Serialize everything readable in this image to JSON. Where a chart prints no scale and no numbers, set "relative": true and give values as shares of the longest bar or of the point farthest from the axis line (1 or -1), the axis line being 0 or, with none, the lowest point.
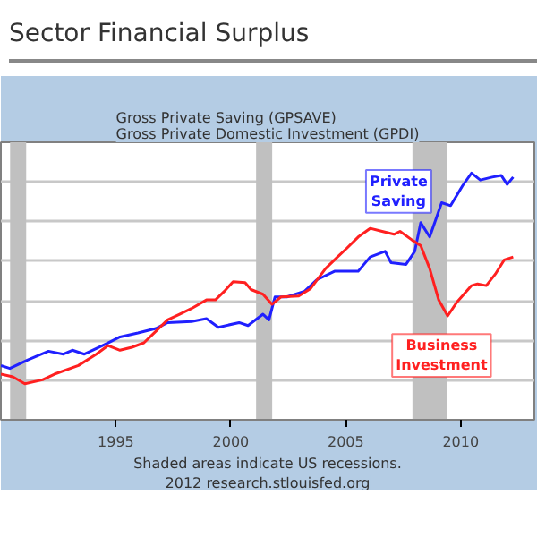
{
  "chart_data": {
    "type": "line",
    "title": "Sector Financial Surplus",
    "subtitle": "Gross Private Saving (GPSAVE)\nGross Private Domestic Investment (GPDI)",
    "relative": true,
    "xlim": [
      1990,
      2013.2
    ],
    "xticks": [
      1995,
      2000,
      2005,
      2010
    ],
    "grid": "y",
    "legend": false,
    "bands": [
      {
        "axis": "x",
        "from": 1990.4,
        "to": 1991.1,
        "color": "#c0c0c0"
      },
      {
        "axis": "x",
        "from": 2001.1,
        "to": 2001.8,
        "color": "#c0c0c0"
      },
      {
        "axis": "x",
        "from": 2007.9,
        "to": 2009.4,
        "color": "#c0c0c0"
      }
    ],
    "annotations": [
      "Shaded areas indicate US recessions.",
      "2012 research.stlouisfed.org"
    ],
    "series": [
      {
        "name": "Private Saving",
        "color": "#2020ff",
        "x": [
          1990.0,
          1990.39,
          1991.17,
          1992.07,
          1992.72,
          1993.11,
          1993.63,
          1994.15,
          1994.66,
          1995.18,
          1995.96,
          1996.74,
          1997.25,
          1998.29,
          1998.94,
          1999.46,
          2000.36,
          2000.75,
          2001.4,
          2001.66,
          2001.92,
          2002.44,
          2003.21,
          2003.73,
          2004.51,
          2005.54,
          2006.06,
          2006.71,
          2006.97,
          2007.62,
          2008.0,
          2008.26,
          2008.65,
          2009.17,
          2009.56,
          2010.08,
          2010.47,
          2010.85,
          2011.37,
          2011.76,
          2012.02,
          2012.28
        ],
        "values": [
          0.22,
          0.208,
          0.243,
          0.278,
          0.266,
          0.282,
          0.266,
          0.289,
          0.312,
          0.336,
          0.352,
          0.37,
          0.394,
          0.398,
          0.41,
          0.375,
          0.394,
          0.382,
          0.428,
          0.405,
          0.498,
          0.498,
          0.521,
          0.567,
          0.602,
          0.602,
          0.66,
          0.683,
          0.637,
          0.63,
          0.683,
          0.799,
          0.741,
          0.88,
          0.868,
          0.949,
          1.0,
          0.972,
          0.984,
          0.991,
          0.954,
          0.984
        ]
      },
      {
        "name": "Business Investment",
        "color": "#ff2020",
        "x": [
          1990.0,
          1990.52,
          1991.04,
          1991.81,
          1992.33,
          1993.37,
          1994.15,
          1994.66,
          1995.18,
          1995.7,
          1996.22,
          1996.74,
          1997.25,
          1997.77,
          1998.29,
          1998.94,
          1999.33,
          1999.72,
          2000.1,
          2000.62,
          2000.88,
          2001.4,
          2001.79,
          2002.18,
          2002.95,
          2003.47,
          2004.12,
          2004.64,
          2005.03,
          2005.54,
          2006.06,
          2006.58,
          2007.1,
          2007.36,
          2007.88,
          2008.26,
          2008.65,
          2009.04,
          2009.43,
          2009.82,
          2010.47,
          2010.73,
          2011.11,
          2011.5,
          2011.89,
          2012.28
        ],
        "values": [
          0.185,
          0.174,
          0.146,
          0.162,
          0.185,
          0.22,
          0.266,
          0.301,
          0.282,
          0.294,
          0.312,
          0.359,
          0.405,
          0.428,
          0.451,
          0.486,
          0.486,
          0.521,
          0.56,
          0.556,
          0.528,
          0.509,
          0.468,
          0.498,
          0.502,
          0.532,
          0.613,
          0.66,
          0.694,
          0.741,
          0.776,
          0.764,
          0.752,
          0.764,
          0.729,
          0.706,
          0.613,
          0.486,
          0.421,
          0.475,
          0.544,
          0.551,
          0.544,
          0.59,
          0.648,
          0.66
        ]
      }
    ]
  }
}
